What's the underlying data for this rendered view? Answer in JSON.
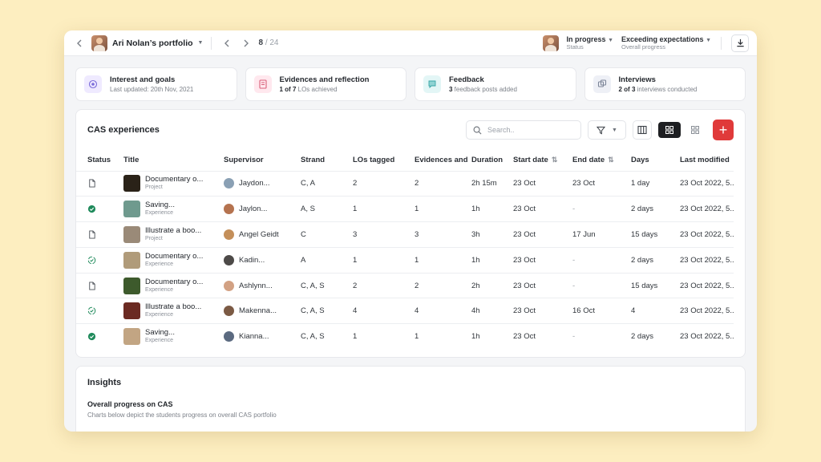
{
  "topbar": {
    "portfolio_title": "Ari Nolan’s portfolio",
    "page_current": "8",
    "page_sep": "/",
    "page_total": "24",
    "status_value": "In progress",
    "status_label": "Status",
    "progress_value": "Exceeding expectations",
    "progress_label": "Overall progress"
  },
  "cards": [
    {
      "title": "Interest and goals",
      "sub_pre": "Last updated: 20th Nov, 2021",
      "sub_bold": "",
      "sub_post": "",
      "icon": "target-icon",
      "color": "#efeaff"
    },
    {
      "title": "Evidences and reflection",
      "sub_pre": "",
      "sub_bold": "1 of 7",
      "sub_post": " LOs achieved",
      "icon": "document-icon",
      "color": "#ffe8ee"
    },
    {
      "title": "Feedback",
      "sub_pre": "",
      "sub_bold": "3",
      "sub_post": " feedback posts added",
      "icon": "chat-icon",
      "color": "#e3f6f6"
    },
    {
      "title": "Interviews",
      "sub_pre": "",
      "sub_bold": "2 of 3",
      "sub_post": " interviews conducted",
      "icon": "interview-icon",
      "color": "#eef0f6"
    }
  ],
  "experiences": {
    "title": "CAS experiences",
    "search_placeholder": "Search..",
    "add_label": "+",
    "columns": [
      "Status",
      "Title",
      "Supervisor",
      "Strand",
      "LOs tagged",
      "Evidences and",
      "Duration",
      "Start date",
      "End date",
      "Days",
      "Last modified"
    ],
    "rows": [
      {
        "status": "draft",
        "title": "Documentary o...",
        "type": "Project",
        "thumb": "#2a2218",
        "supervisor": "Jaydon...",
        "sup_color": "#8aa0b4",
        "strand": "C, A",
        "los": "2",
        "evidences": "2",
        "duration": "2h 15m",
        "start": "23 Oct",
        "end": "23 Oct",
        "days": "1 day",
        "modified": "23 Oct 2022, 5..."
      },
      {
        "status": "complete",
        "title": "Saving...",
        "type": "Experience",
        "thumb": "#6f9a8e",
        "supervisor": "Jaylon...",
        "sup_color": "#b5734f",
        "strand": "A, S",
        "los": "1",
        "evidences": "1",
        "duration": "1h",
        "start": "23 Oct",
        "end": "-",
        "days": "2 days",
        "modified": "23 Oct 2022, 5..."
      },
      {
        "status": "draft",
        "title": "Illustrate a boo...",
        "type": "Project",
        "thumb": "#9a8a78",
        "supervisor": "Angel Geidt",
        "sup_color": "#c48f5a",
        "strand": "C",
        "los": "3",
        "evidences": "3",
        "duration": "3h",
        "start": "23 Oct",
        "end": "17 Jun",
        "days": "15 days",
        "modified": "23 Oct 2022, 5..."
      },
      {
        "status": "progress",
        "title": "Documentary o...",
        "type": "Experience",
        "thumb": "#b09b7a",
        "supervisor": "Kadin...",
        "sup_color": "#4d4a48",
        "strand": "A",
        "los": "1",
        "evidences": "1",
        "duration": "1h",
        "start": "23 Oct",
        "end": "-",
        "days": "2 days",
        "modified": "23 Oct 2022, 5..."
      },
      {
        "status": "draft",
        "title": "Documentary o...",
        "type": "Experience",
        "thumb": "#3d5a2c",
        "supervisor": "Ashlynn...",
        "sup_color": "#d2a183",
        "strand": "C, A, S",
        "los": "2",
        "evidences": "2",
        "duration": "2h",
        "start": "23 Oct",
        "end": "-",
        "days": "15 days",
        "modified": "23 Oct 2022, 5..."
      },
      {
        "status": "progress",
        "title": "Illustrate a boo...",
        "type": "Experience",
        "thumb": "#6b2a22",
        "supervisor": "Makenna...",
        "sup_color": "#7b5a44",
        "strand": "C, A, S",
        "los": "4",
        "evidences": "4",
        "duration": "4h",
        "start": "23 Oct",
        "end": "16 Oct",
        "days": "4",
        "modified": "23 Oct 2022, 5..."
      },
      {
        "status": "complete",
        "title": "Saving...",
        "type": "Experience",
        "thumb": "#c2a583",
        "supervisor": "Kianna...",
        "sup_color": "#5b6a80",
        "strand": "C, A, S",
        "los": "1",
        "evidences": "1",
        "duration": "1h",
        "start": "23 Oct",
        "end": "-",
        "days": "2 days",
        "modified": "23 Oct 2022, 5..."
      }
    ]
  },
  "insights": {
    "title": "Insights",
    "subtitle": "Overall progress on CAS",
    "description": "Charts below depict the students progress on overall CAS portfolio"
  }
}
